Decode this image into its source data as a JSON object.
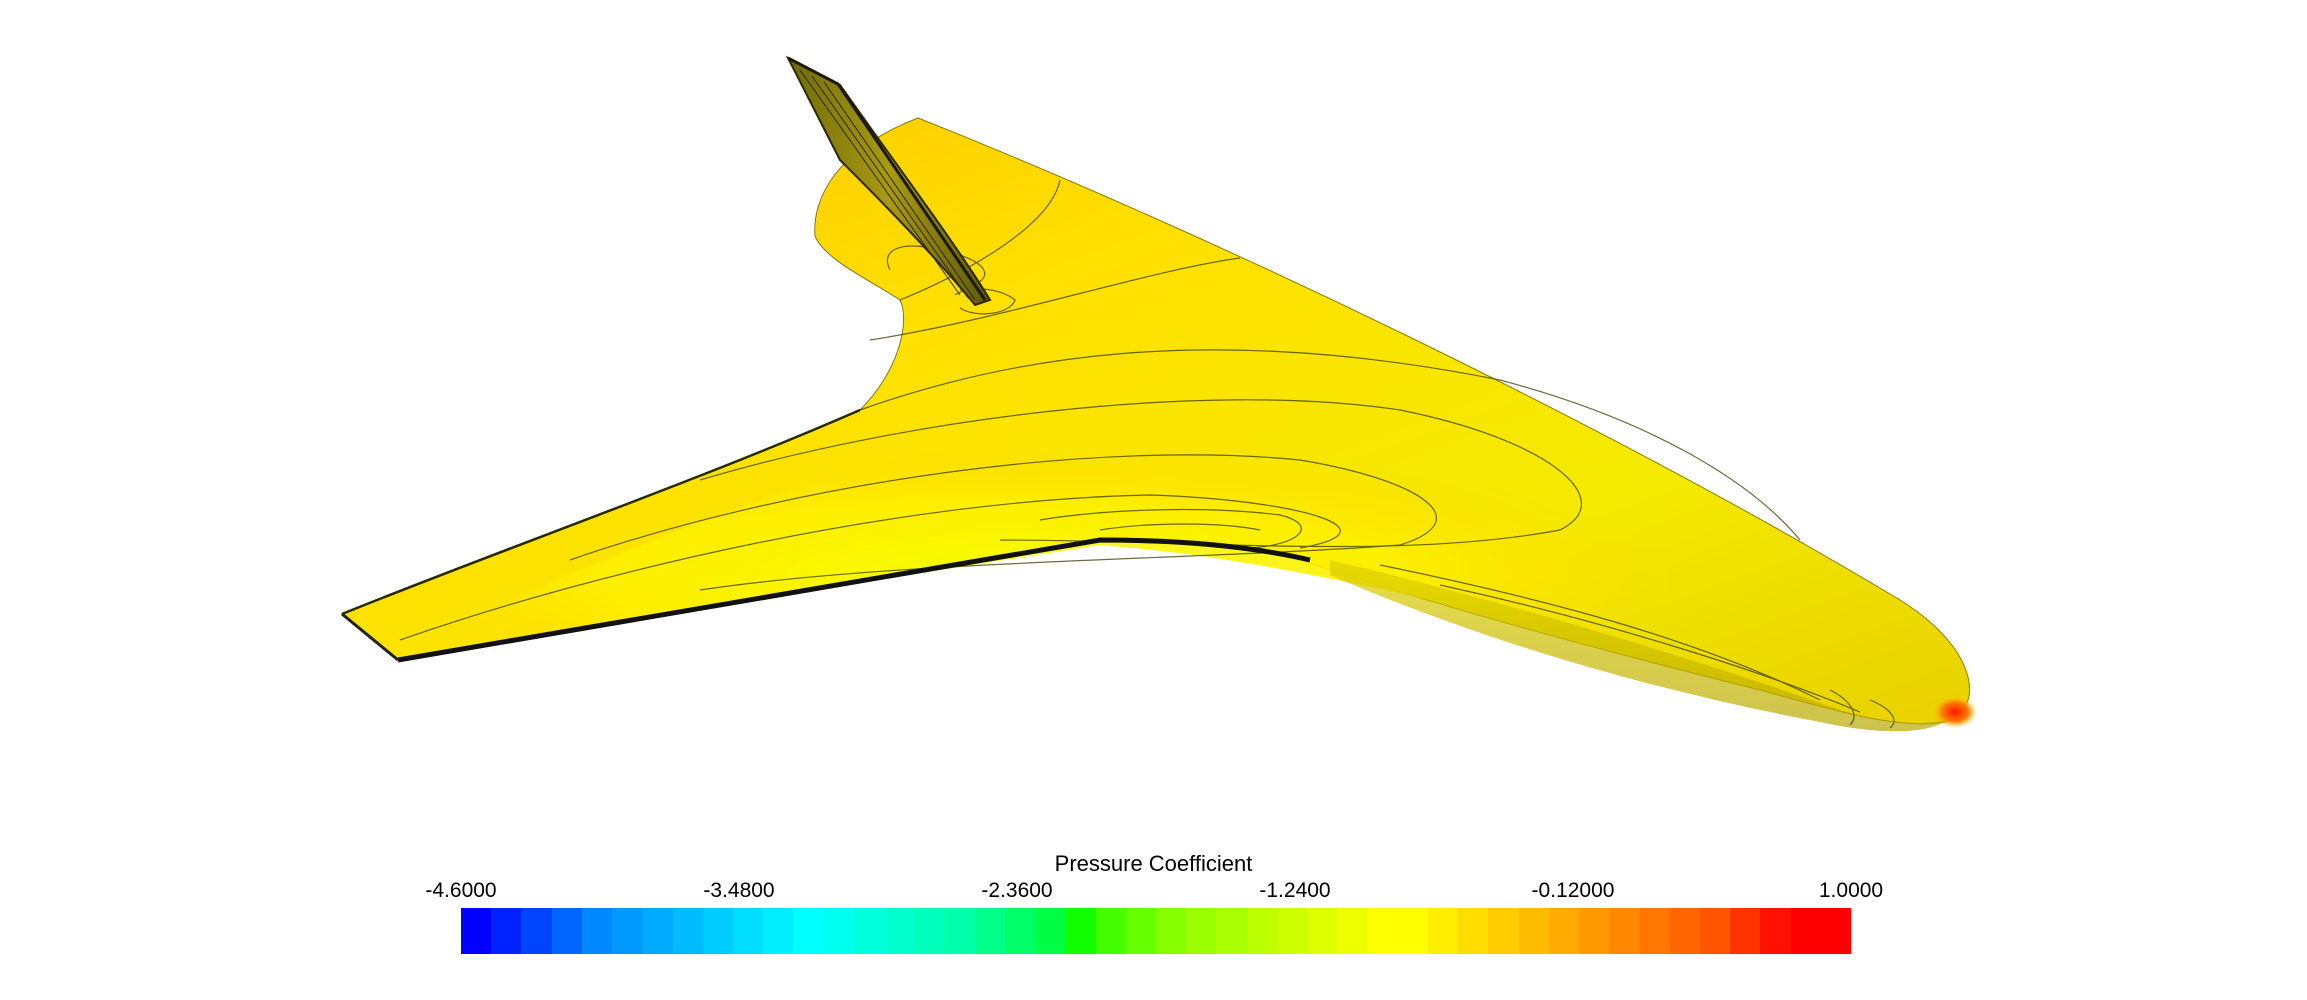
{
  "legend": {
    "title": "Pressure Coefficient",
    "ticks": [
      "-4.6000",
      "-3.4800",
      "-2.3600",
      "-1.2400",
      "-0.12000",
      "1.0000"
    ],
    "min": -4.6,
    "max": 1.0,
    "bands": [
      "#0000ff",
      "#0022ff",
      "#0044ff",
      "#0066ff",
      "#0088ff",
      "#0099ff",
      "#00aaff",
      "#00bbff",
      "#00ccff",
      "#00ddff",
      "#00eeff",
      "#00ffff",
      "#00ffee",
      "#00ffdd",
      "#00ffcc",
      "#00ffbb",
      "#00ffaa",
      "#00ff88",
      "#00ff66",
      "#00ff44",
      "#11ff00",
      "#44ff00",
      "#66ff00",
      "#88ff00",
      "#99ff00",
      "#aaff00",
      "#bbff00",
      "#ccff00",
      "#ddff00",
      "#eeff00",
      "#ffff00",
      "#ffff00",
      "#ffee00",
      "#ffdd00",
      "#ffcc00",
      "#ffbb00",
      "#ffaa00",
      "#ff9900",
      "#ff8800",
      "#ff7700",
      "#ff6600",
      "#ff5500",
      "#ff3300",
      "#ff1100",
      "#ff0000",
      "#ff0000"
    ]
  },
  "surface_colors": {
    "outer_wing": "#ffde00",
    "inner_wing": "#f6f000",
    "fin": "#8a7f10",
    "tip": "#ff3a00",
    "edge": "#111111"
  }
}
